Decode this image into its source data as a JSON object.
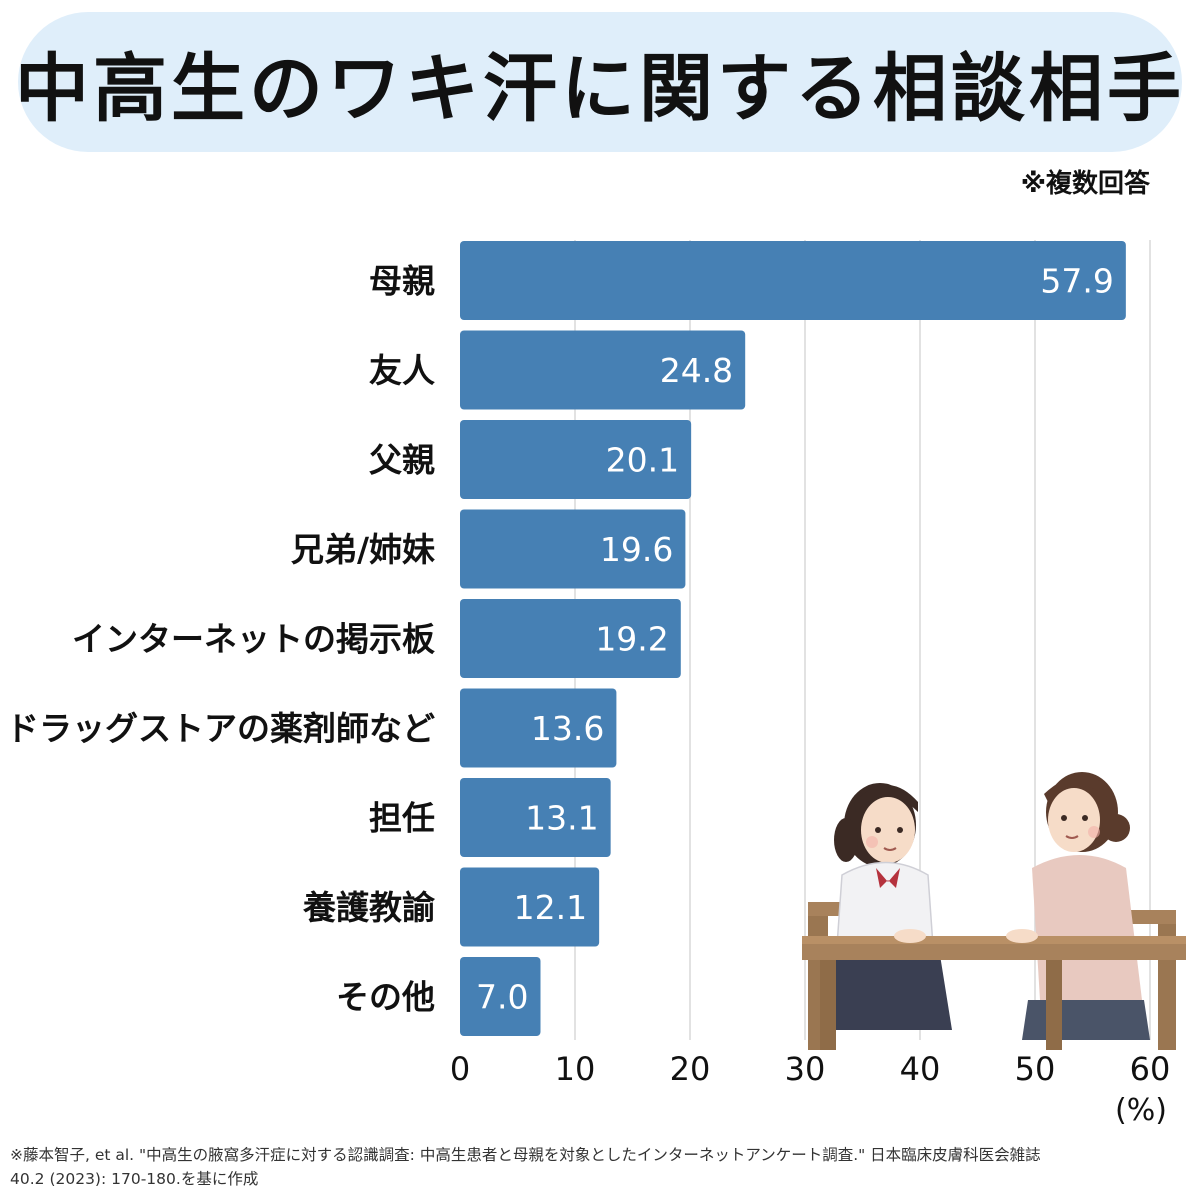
{
  "title": "中高生のワキ汗に関する相談相手",
  "note": "※複数回答",
  "chart_data": {
    "type": "bar",
    "orientation": "horizontal",
    "categories": [
      "母親",
      "友人",
      "父親",
      "兄弟/姉妹",
      "インターネットの掲示板",
      "ドラッグストアの薬剤師など",
      "担任",
      "養護教諭",
      "その他"
    ],
    "values": [
      57.9,
      24.8,
      20.1,
      19.6,
      19.2,
      13.6,
      13.1,
      12.1,
      7.0
    ],
    "value_labels": [
      "57.9",
      "24.8",
      "20.1",
      "19.6",
      "19.2",
      "13.6",
      "13.1",
      "12.1",
      "7.0"
    ],
    "xlim": [
      0,
      60
    ],
    "xticks": [
      0,
      10,
      20,
      30,
      40,
      50,
      60
    ],
    "x_unit": "(%)",
    "grid": true,
    "bar_color": "#4680b4"
  },
  "source": {
    "line1": "※藤本智子, et al. \"中高生の腋窩多汗症に対する認識調査: 中高生患者と母親を対象としたインターネットアンケート調査.\" 日本臨床皮膚科医会雑誌",
    "line2": "40.2 (2023): 170-180.を基に作成"
  }
}
